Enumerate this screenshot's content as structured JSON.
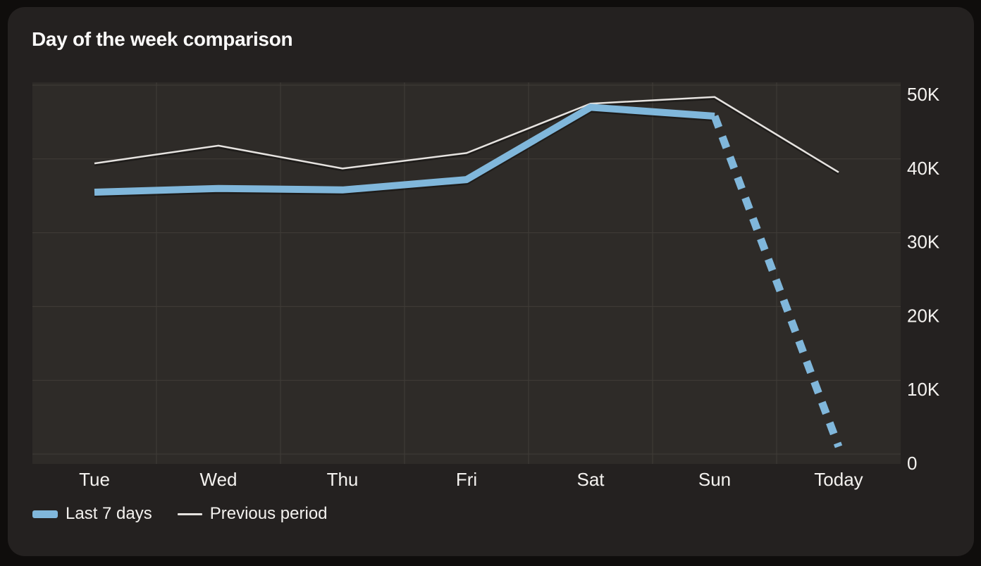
{
  "colors": {
    "page_bg": "#0f0d0c",
    "card_bg": "#242120",
    "plot_bg": "#2e2b28",
    "gridline": "#403c38",
    "text": "#f4f2ef",
    "last_7_days_line": "#80b7db",
    "previous_period_line": "#e6e3e0"
  },
  "chart_data": {
    "type": "line",
    "title": "Day of the week comparison",
    "categories": [
      "Tue",
      "Wed",
      "Thu",
      "Fri",
      "Sat",
      "Sun",
      "Today"
    ],
    "series": [
      {
        "name": "Last 7 days",
        "values": [
          35500,
          36000,
          35800,
          37200,
          47000,
          45800,
          1000
        ],
        "color": "#80b7db",
        "stroke_width": 10,
        "style": "solid-then-dashed",
        "dashed_from_index": 5
      },
      {
        "name": "Previous period",
        "values": [
          39400,
          41800,
          38700,
          40800,
          47500,
          48400,
          38200
        ],
        "color": "#e6e3e0",
        "stroke_width": 2.5,
        "style": "solid",
        "dashed_from_index": -1
      }
    ],
    "xlabel": "",
    "ylabel": "",
    "ylim": [
      0,
      50000
    ],
    "yticks": [
      {
        "value": 0,
        "label": "0"
      },
      {
        "value": 10000,
        "label": "10K"
      },
      {
        "value": 20000,
        "label": "20K"
      },
      {
        "value": 30000,
        "label": "30K"
      },
      {
        "value": 40000,
        "label": "40K"
      },
      {
        "value": 50000,
        "label": "50K"
      }
    ],
    "y_axis_side": "right",
    "grid": "both",
    "legend_position": "bottom-left"
  }
}
